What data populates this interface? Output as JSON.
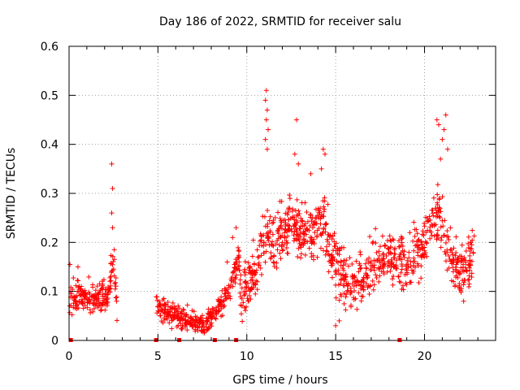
{
  "chart_data": {
    "type": "scatter",
    "title": "Day 186 of 2022, SRMTID for receiver salu",
    "xlabel": "GPS time / hours",
    "ylabel": "SRMTID / TECUs",
    "xlim": [
      0,
      24
    ],
    "ylim": [
      0,
      0.6
    ],
    "xticks": [
      0,
      5,
      10,
      15,
      20
    ],
    "xtick_labels": [
      "0",
      "5",
      "10",
      "15",
      "20"
    ],
    "yticks": [
      0,
      0.1,
      0.2,
      0.3,
      0.4,
      0.5,
      0.6
    ],
    "ytick_labels": [
      "0",
      "0.1",
      "0.2",
      "0.3",
      "0.4",
      "0.5",
      "0.6"
    ],
    "grid": true,
    "marker": "+",
    "color": "#ff0000",
    "baseline_markers_x": [
      0.1,
      4.9,
      6.2,
      8.2,
      9.4,
      18.6
    ],
    "series": [
      {
        "name": "SRMTID",
        "segments": [
          {
            "start": 0.0,
            "end": 2.7,
            "trend": [
              [
                0.0,
                0.08
              ],
              [
                0.5,
                0.09
              ],
              [
                1.5,
                0.085
              ],
              [
                2.2,
                0.09
              ],
              [
                2.5,
                0.17
              ],
              [
                2.7,
                0.08
              ]
            ],
            "spread": 0.03
          },
          {
            "start": 4.9,
            "end": 9.6,
            "trend": [
              [
                4.9,
                0.07
              ],
              [
                6.0,
                0.05
              ],
              [
                7.0,
                0.04
              ],
              [
                7.6,
                0.03
              ],
              [
                8.3,
                0.06
              ],
              [
                9.0,
                0.1
              ],
              [
                9.6,
                0.17
              ]
            ],
            "spread": 0.022
          },
          {
            "start": 9.6,
            "end": 22.8,
            "trend": [
              [
                9.6,
                0.09
              ],
              [
                10.5,
                0.14
              ],
              [
                11.0,
                0.22
              ],
              [
                11.5,
                0.2
              ],
              [
                12.5,
                0.24
              ],
              [
                13.5,
                0.21
              ],
              [
                14.3,
                0.25
              ],
              [
                15.0,
                0.16
              ],
              [
                15.6,
                0.12
              ],
              [
                16.2,
                0.11
              ],
              [
                17.0,
                0.16
              ],
              [
                18.0,
                0.17
              ],
              [
                19.0,
                0.15
              ],
              [
                20.0,
                0.2
              ],
              [
                20.8,
                0.26
              ],
              [
                21.2,
                0.2
              ],
              [
                21.8,
                0.15
              ],
              [
                22.3,
                0.14
              ],
              [
                22.8,
                0.19
              ]
            ],
            "spread": 0.05
          }
        ],
        "peaks": [
          [
            0.05,
            0.155
          ],
          [
            0.5,
            0.15
          ],
          [
            2.4,
            0.36
          ],
          [
            2.45,
            0.31
          ],
          [
            2.4,
            0.26
          ],
          [
            2.45,
            0.23
          ],
          [
            8.9,
            0.16
          ],
          [
            9.2,
            0.21
          ],
          [
            9.4,
            0.23
          ],
          [
            11.1,
            0.51
          ],
          [
            11.05,
            0.49
          ],
          [
            11.15,
            0.47
          ],
          [
            11.1,
            0.45
          ],
          [
            11.2,
            0.43
          ],
          [
            11.05,
            0.41
          ],
          [
            11.15,
            0.39
          ],
          [
            12.8,
            0.45
          ],
          [
            12.7,
            0.38
          ],
          [
            12.9,
            0.36
          ],
          [
            13.6,
            0.34
          ],
          [
            14.3,
            0.39
          ],
          [
            14.4,
            0.38
          ],
          [
            14.2,
            0.35
          ],
          [
            20.7,
            0.45
          ],
          [
            20.8,
            0.44
          ],
          [
            21.0,
            0.41
          ],
          [
            21.2,
            0.46
          ],
          [
            21.1,
            0.43
          ],
          [
            21.3,
            0.39
          ],
          [
            20.9,
            0.37
          ],
          [
            15.0,
            0.03
          ],
          [
            15.2,
            0.04
          ],
          [
            22.2,
            0.08
          ],
          [
            7.6,
            0.015
          ]
        ]
      }
    ]
  }
}
